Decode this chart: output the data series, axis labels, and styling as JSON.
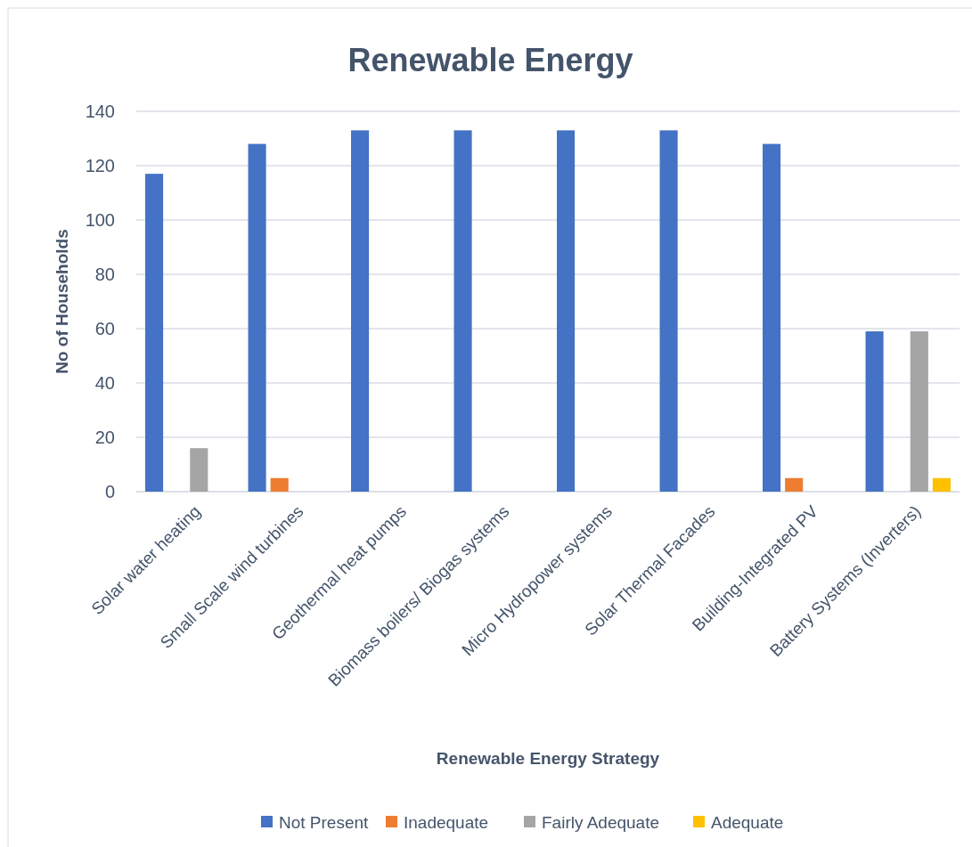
{
  "chart_data": {
    "type": "bar",
    "title": "Renewable Energy",
    "xlabel": "Renewable Energy Strategy",
    "ylabel": "No of Households",
    "categories": [
      "Solar water heating",
      "Small Scale wind turbines",
      "Geothermal heat pumps",
      "Biomass boilers/ Biogas systems",
      "Micro Hydropower systems",
      "Solar Thermal Facades",
      "Building-Integrated PV",
      "Battery Systems (Inverters)"
    ],
    "series": [
      {
        "name": "Not Present",
        "color": "#4472c4",
        "values": [
          117,
          128,
          133,
          133,
          133,
          133,
          128,
          59
        ]
      },
      {
        "name": "Inadequate",
        "color": "#ed7d31",
        "values": [
          null,
          5,
          null,
          null,
          null,
          null,
          5,
          null
        ]
      },
      {
        "name": "Fairly Adequate",
        "color": "#a5a5a5",
        "values": [
          16,
          null,
          null,
          null,
          null,
          null,
          null,
          59
        ]
      },
      {
        "name": "Adequate",
        "color": "#ffc000",
        "values": [
          null,
          null,
          null,
          null,
          null,
          null,
          null,
          5
        ]
      }
    ],
    "ylim": [
      0,
      140
    ],
    "yticks": [
      0,
      20,
      40,
      60,
      80,
      100,
      120,
      140
    ],
    "grid": "y",
    "legend": "bottom"
  }
}
